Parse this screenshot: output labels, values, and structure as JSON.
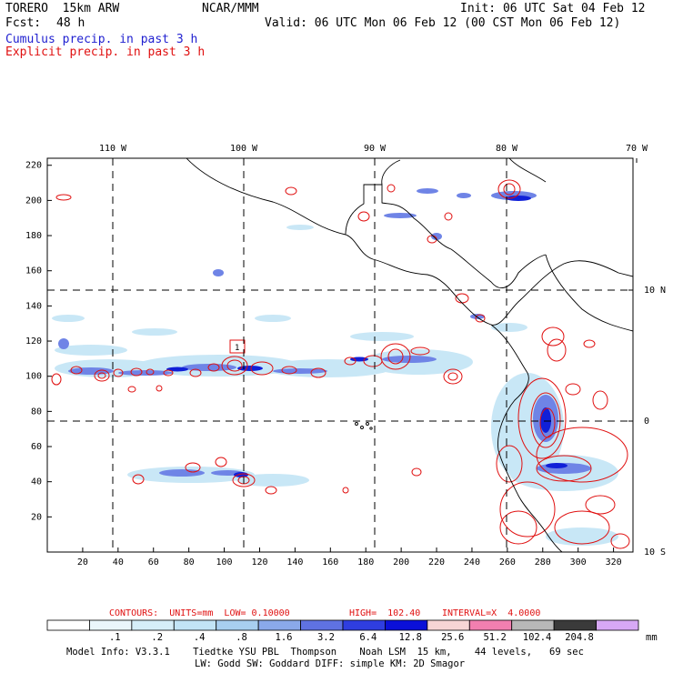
{
  "header": {
    "model": "TORERO  15km ARW",
    "org": "NCAR/MMM",
    "init": "Init: 06 UTC Sat 04 Feb 12",
    "fcst_label": "Fcst:",
    "fcst_value": "48 h",
    "valid": "Valid: 06 UTC Mon 06 Feb 12 (00 CST Mon 06 Feb 12)",
    "cumulus": "Cumulus precip. in past 3 h",
    "explicit": "Explicit precip. in past 3 h"
  },
  "map": {
    "x_ticks": [
      "20",
      "40",
      "60",
      "80",
      "100",
      "120",
      "140",
      "160",
      "180",
      "200",
      "220",
      "240",
      "260",
      "280",
      "300",
      "320"
    ],
    "y_ticks": [
      "20",
      "40",
      "60",
      "80",
      "100",
      "120",
      "140",
      "160",
      "180",
      "200",
      "220"
    ],
    "lon_labels": [
      "110 W",
      "100 W",
      "90 W",
      "80 W",
      "70 W"
    ],
    "lat_labels": [
      "10 N",
      "0",
      "10 S"
    ],
    "box_label": "1"
  },
  "contour_info": {
    "contours": "CONTOURS:  UNITS=mm  LOW= 0.10000",
    "high": "HIGH=  102.40",
    "interval": "INTERVAL=X  4.0000"
  },
  "colorbar": {
    "unit": "mm",
    "labels": [
      ".1",
      ".2",
      ".4",
      ".8",
      "1.6",
      "3.2",
      "6.4",
      "12.8",
      "25.6",
      "51.2",
      "102.4",
      "204.8"
    ],
    "colors": [
      "#ffffff",
      "#eaf6fb",
      "#d6eef8",
      "#c2e4f6",
      "#a8cff0",
      "#8aa9ea",
      "#5f72e2",
      "#2f3ee0",
      "#0b10d8",
      "#f7d5d5",
      "#f27fb0",
      "#b8b8b8",
      "#3a3a3a",
      "#d7a8f5"
    ]
  },
  "model_info": {
    "line1": "Model Info: V3.3.1    Tiedtke YSU PBL  Thompson    Noah LSM  15 km,    44 levels,   69 sec",
    "line2": "LW: Godd SW: Goddard DIFF: simple KM: 2D Smagor"
  }
}
